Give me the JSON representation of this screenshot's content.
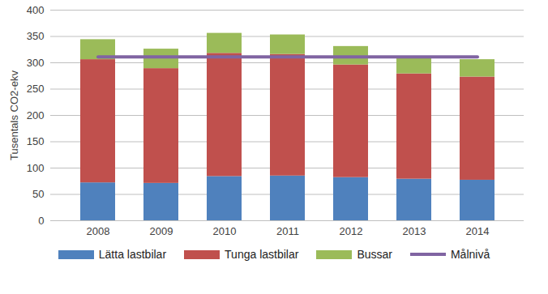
{
  "chart_data": {
    "type": "bar",
    "stacked": true,
    "grid": true,
    "legend": "bottom",
    "y_label": "Tusentals CO2-ekv",
    "categories": [
      "2008",
      "2009",
      "2010",
      "2011",
      "2012",
      "2013",
      "2014"
    ],
    "ylim": [
      0,
      400
    ],
    "yticks": [
      0,
      50,
      100,
      150,
      200,
      250,
      300,
      350,
      400
    ],
    "series": [
      {
        "name": "Lätta lastbilar",
        "color": "#4f81bd",
        "values": [
          72,
          71,
          84,
          85,
          82,
          79,
          77
        ]
      },
      {
        "name": "Tunga lastbilar",
        "color": "#c0504d",
        "values": [
          234,
          218,
          234,
          231,
          214,
          200,
          196
        ]
      },
      {
        "name": "Bussar",
        "color": "#9bbb59",
        "values": [
          38,
          37,
          38,
          37,
          35,
          30,
          33
        ]
      },
      {
        "name": "Målnivå",
        "color": "#8064a2",
        "type": "line",
        "values": [
          311,
          311,
          311,
          311,
          311,
          311,
          311
        ]
      }
    ]
  }
}
